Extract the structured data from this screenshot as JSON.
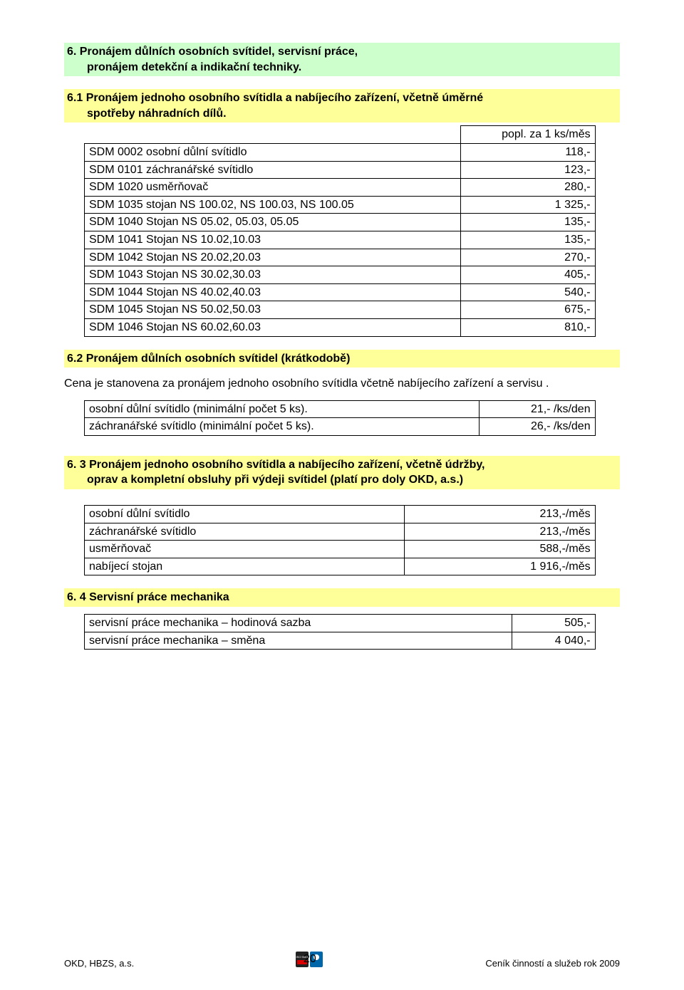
{
  "colors": {
    "green_bg": "#ccffcc",
    "yellow_bg": "#ffff99",
    "text": "#000000",
    "page_bg": "#ffffff",
    "border": "#000000"
  },
  "section6": {
    "title_line1": "6. Pronájem důlních osobních svítidel, servisní práce,",
    "title_line2": "pronájem detekční a indikační techniky."
  },
  "section6_1": {
    "title_line1": "6.1 Pronájem jednoho osobního svítidla a nabíjecího  zařízení, včetně úměrné",
    "title_line2": "spotřeby náhradních dílů.",
    "header_cell": "popl. za 1 ks/měs",
    "rows": [
      {
        "label": "SDM  0002 osobní důlní svítidlo",
        "value": "118,-"
      },
      {
        "label": "SDM  0101 záchranářské svítidlo",
        "value": "123,-"
      },
      {
        "label": "SDM 1020 usměrňovač",
        "value": "280,-"
      },
      {
        "label": "SDM 1035 stojan NS 100.02, NS 100.03, NS 100.05",
        "value": "1 325,-"
      },
      {
        "label": "SDM 1040 Stojan NS 05.02, 05.03, 05.05",
        "value": "135,-"
      },
      {
        "label": "SDM 1041 Stojan NS 10.02,10.03",
        "value": "135,-"
      },
      {
        "label": "SDM 1042 Stojan NS 20.02,20.03",
        "value": "270,-"
      },
      {
        "label": "SDM 1043 Stojan NS 30.02,30.03",
        "value": "405,-"
      },
      {
        "label": "SDM 1044 Stojan NS 40.02,40.03",
        "value": "540,-"
      },
      {
        "label": "SDM 1045 Stojan NS 50.02,50.03",
        "value": "675,-"
      },
      {
        "label": "SDM 1046 Stojan NS 60.02,60.03",
        "value": "810,-"
      }
    ]
  },
  "section6_2": {
    "title": "6.2 Pronájem důlních osobních svítidel (krátkodobě)",
    "body": "Cena je stanovena za pronájem jednoho osobního svítidla včetně nabíjecího zařízení a servisu .",
    "rows": [
      {
        "label": "osobní důlní svítidlo    (minimální počet 5 ks).",
        "value": "21,- /ks/den"
      },
      {
        "label": "záchranářské svítidlo  (minimální počet 5 ks).",
        "value": "26,- /ks/den"
      }
    ]
  },
  "section6_3": {
    "title_line1": "6. 3 Pronájem jednoho osobního svítidla a nabíjecího zařízení, včetně údržby,",
    "title_line2": "oprav a kompletní obsluhy při výdeji svítidel (platí pro doly OKD, a.s.)",
    "rows": [
      {
        "label": "osobní důlní svítidlo",
        "value": "213,-/měs"
      },
      {
        "label": "záchranářské svítidlo",
        "value": "213,-/měs"
      },
      {
        "label": "usměrňovač",
        "value": "588,-/měs"
      },
      {
        "label": "nabíjecí stojan",
        "value": "1 916,-/měs"
      }
    ]
  },
  "section6_4": {
    "title": "6. 4 Servisní práce mechanika",
    "rows": [
      {
        "label": "servisní práce mechanika – hodinová sazba",
        "value": "505,-"
      },
      {
        "label": "servisní práce mechanika – směna",
        "value": "4 040,-"
      }
    ]
  },
  "footer": {
    "left": "OKD, HBZS, a.s.",
    "page_number": "20",
    "right": "Ceník činností a služeb rok 2009"
  }
}
